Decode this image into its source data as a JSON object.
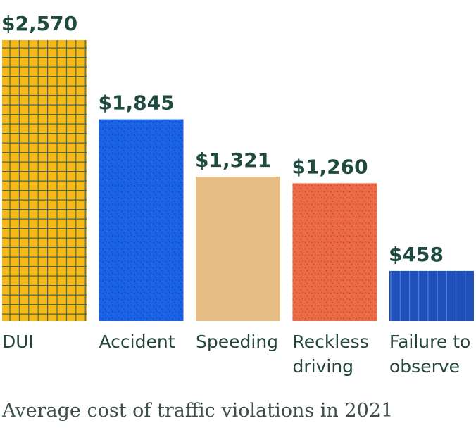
{
  "chart_data": {
    "type": "bar",
    "title": "Average cost of traffic violations in 2021",
    "currency_prefix": "$",
    "categories": [
      [
        "DUI"
      ],
      [
        "Accident"
      ],
      [
        "Speeding"
      ],
      [
        "Reckless",
        "driving"
      ],
      [
        "Failure to",
        "observe"
      ]
    ],
    "values": [
      2570,
      1845,
      1321,
      1260,
      458
    ],
    "value_labels": [
      "$2,570",
      "$1,845",
      "$1,321",
      "$1,260",
      "$458"
    ],
    "ylim": [
      0,
      2570
    ],
    "xlabel": "",
    "ylabel": "",
    "grid": false,
    "fills": [
      {
        "color": "#f7b819",
        "pattern": "grid",
        "line": "#3f6a55"
      },
      {
        "color": "#1b63e6",
        "pattern": "speckle",
        "line": "#0c3a9a"
      },
      {
        "color": "#e5bd85",
        "pattern": "solid",
        "line": ""
      },
      {
        "color": "#ec6a46",
        "pattern": "speckle",
        "line": "#a33c22"
      },
      {
        "color": "#1f4fb8",
        "pattern": "vertical-lines",
        "line": "#4f7fe0"
      }
    ]
  }
}
